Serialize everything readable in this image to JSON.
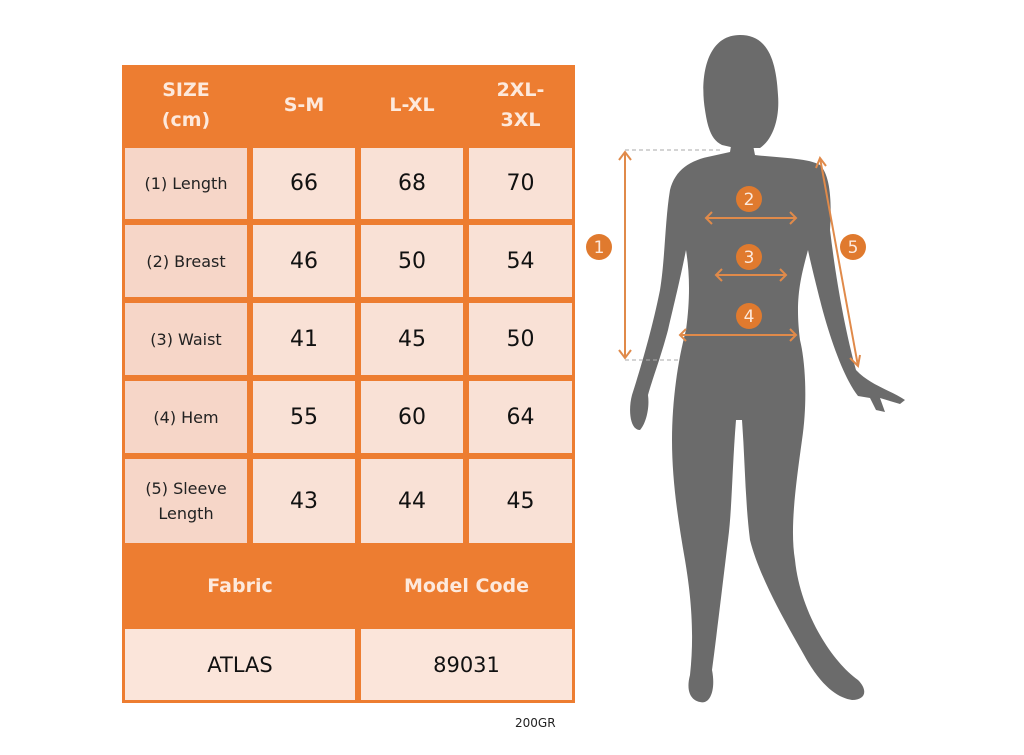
{
  "table": {
    "header": [
      "SIZE\n(cm)",
      "S-M",
      "L-XL",
      "2XL-\n3XL"
    ],
    "rows": [
      {
        "label": "(1) Length",
        "values": [
          "66",
          "68",
          "70"
        ]
      },
      {
        "label": "(2) Breast",
        "values": [
          "46",
          "50",
          "54"
        ]
      },
      {
        "label": "(3) Waist",
        "values": [
          "41",
          "45",
          "50"
        ]
      },
      {
        "label": "(4) Hem",
        "values": [
          "55",
          "60",
          "64"
        ]
      },
      {
        "label": "(5) Sleeve\nLength",
        "values": [
          "43",
          "44",
          "45"
        ]
      }
    ],
    "footer_headers": [
      "Fabric",
      "Model Code"
    ],
    "footer_values": [
      "ATLAS",
      "89031"
    ]
  },
  "note": "200GR",
  "figure": {
    "markers": [
      "1",
      "2",
      "3",
      "4",
      "5"
    ],
    "colors": {
      "accent": "#ed7d31",
      "silhouette": "#6b6b6b",
      "cell": "#f9e1d6"
    }
  }
}
